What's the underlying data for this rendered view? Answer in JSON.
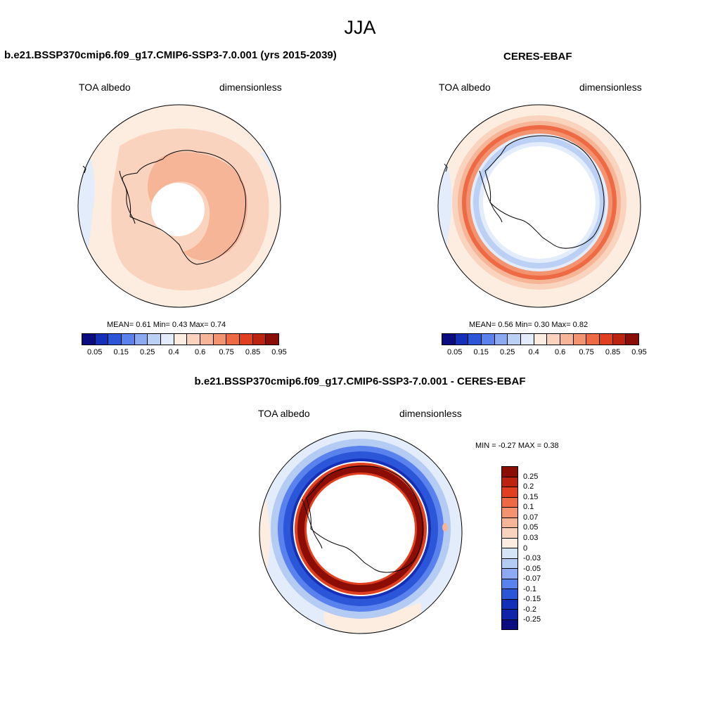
{
  "title": "JJA",
  "panels": {
    "model": {
      "title": "b.e21.BSSP370cmip6.f09_g17.CMIP6-SSP3-7.0.001 (yrs 2015-2039)",
      "left_label": "TOA albedo",
      "right_label": "dimensionless",
      "stats": "MEAN=   0.61  Min=   0.43  Max=   0.74"
    },
    "obs": {
      "title": "CERES-EBAF",
      "left_label": "TOA albedo",
      "right_label": "dimensionless",
      "stats": "MEAN=   0.56  Min=   0.30  Max=   0.82"
    },
    "diff": {
      "title": "b.e21.BSSP370cmip6.f09_g17.CMIP6-SSP3-7.0.001 - CERES-EBAF",
      "left_label": "TOA albedo",
      "right_label": "dimensionless",
      "stats": "MIN =  -0.27 MAX =   0.38"
    }
  },
  "colorbar_abs": {
    "colors": [
      "#0b0c80",
      "#1530b8",
      "#2c56d8",
      "#5a82ee",
      "#8ca9f2",
      "#bcd0f6",
      "#e2ecfa",
      "#fdece0",
      "#fad3be",
      "#f7b598",
      "#f3936f",
      "#ee6a45",
      "#e0401f",
      "#bd2410",
      "#8a0e06"
    ],
    "ticks": [
      "0.05",
      "0.15",
      "0.25",
      "0.4",
      "0.6",
      "0.75",
      "0.85",
      "0.95"
    ]
  },
  "colorbar_diff": {
    "colors": [
      "#8a0e06",
      "#bd2410",
      "#e0401f",
      "#ee6a45",
      "#f3936f",
      "#f7b598",
      "#fad3be",
      "#fdece0",
      "#d6e4f8",
      "#b4cbf4",
      "#8ca9f2",
      "#5a82ee",
      "#2c56d8",
      "#1530b8",
      "#0f24a8",
      "#0b0c80"
    ],
    "ticks": [
      "0.25",
      "0.2",
      "0.15",
      "0.1",
      "0.07",
      "0.05",
      "0.03",
      "0",
      "-0.03",
      "-0.05",
      "-0.07",
      "-0.1",
      "-0.15",
      "-0.2",
      "-0.25"
    ]
  }
}
